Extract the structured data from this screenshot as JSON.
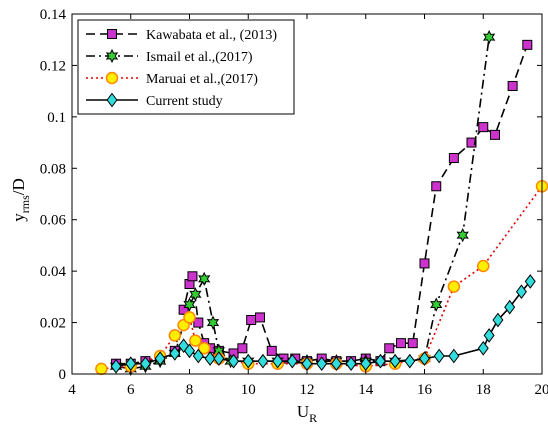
{
  "chart_data": {
    "type": "line",
    "xlabel": "U",
    "xlabel_sub": "R",
    "ylabel": "y",
    "ylabel_sub": "rms",
    "ylabel_suffix": "/D",
    "xlim": [
      4,
      20
    ],
    "ylim": [
      0,
      0.14
    ],
    "x_ticks": [
      4,
      6,
      8,
      10,
      12,
      14,
      16,
      18,
      20
    ],
    "y_ticks": [
      0,
      0.02,
      0.04,
      0.06,
      0.08,
      0.1,
      0.12,
      0.14
    ],
    "x_tick_labels": [
      "4",
      "6",
      "8",
      "10",
      "12",
      "14",
      "16",
      "18",
      "20"
    ],
    "y_tick_labels": [
      "0",
      "0.02",
      "0.04",
      "0.06",
      "0.08",
      "0.1",
      "0.12",
      "0.14"
    ],
    "grid": false,
    "legend_position": "top-left",
    "series": [
      {
        "name": "Kawabata et al., (2013)",
        "line_style": "dashed",
        "line_color": "#000000",
        "marker": "square",
        "marker_color": "#cc33cc",
        "x": [
          5.5,
          6.0,
          6.5,
          7.0,
          7.5,
          7.8,
          8.0,
          8.1,
          8.3,
          8.5,
          8.7,
          9.0,
          9.5,
          9.8,
          10.1,
          10.4,
          10.8,
          11.2,
          11.6,
          12.0,
          12.5,
          13.0,
          13.5,
          14.0,
          14.5,
          14.8,
          15.2,
          15.6,
          16.0,
          16.4,
          17.0,
          17.6,
          18.0,
          18.4,
          19.0,
          19.5
        ],
        "y": [
          0.004,
          0.004,
          0.005,
          0.006,
          0.009,
          0.025,
          0.035,
          0.038,
          0.02,
          0.012,
          0.01,
          0.009,
          0.008,
          0.01,
          0.021,
          0.022,
          0.009,
          0.006,
          0.006,
          0.005,
          0.006,
          0.005,
          0.005,
          0.006,
          0.005,
          0.01,
          0.012,
          0.012,
          0.043,
          0.073,
          0.084,
          0.09,
          0.096,
          0.093,
          0.112,
          0.128
        ]
      },
      {
        "name": "Ismail et al.,(2017)",
        "line_style": "dashdot",
        "line_color": "#000000",
        "marker": "hexagram",
        "marker_color": "#33cc33",
        "x": [
          5.5,
          6.0,
          6.5,
          7.0,
          7.5,
          8.0,
          8.2,
          8.5,
          8.8,
          9.0,
          9.4,
          10.0,
          11.0,
          12.0,
          13.0,
          14.0,
          15.0,
          16.0,
          16.4,
          17.3,
          18.2
        ],
        "y": [
          0.003,
          0.002,
          0.003,
          0.005,
          0.008,
          0.027,
          0.031,
          0.037,
          0.02,
          0.009,
          0.005,
          0.005,
          0.005,
          0.005,
          0.005,
          0.005,
          0.005,
          0.006,
          0.027,
          0.054,
          0.131
        ]
      },
      {
        "name": "Maruai et al.,(2017)",
        "line_style": "dotted",
        "line_color": "#e00000",
        "marker": "circle",
        "marker_color": "#ffee00",
        "marker_edge": "#ff8800",
        "x": [
          5.0,
          6.0,
          7.0,
          7.5,
          7.8,
          8.0,
          8.2,
          8.5,
          9.0,
          10.0,
          11.0,
          12.0,
          13.0,
          14.0,
          15.0,
          16.0,
          17.0,
          18.0,
          20.0
        ],
        "y": [
          0.002,
          0.003,
          0.007,
          0.015,
          0.019,
          0.022,
          0.013,
          0.01,
          0.006,
          0.004,
          0.004,
          0.004,
          0.004,
          0.003,
          0.004,
          0.006,
          0.034,
          0.042,
          0.073
        ]
      },
      {
        "name": "Current study",
        "line_style": "solid",
        "line_color": "#000000",
        "marker": "diamond",
        "marker_color": "#33dddd",
        "x": [
          5.5,
          6.0,
          6.5,
          7.0,
          7.5,
          7.8,
          8.0,
          8.3,
          8.7,
          9.0,
          9.5,
          10.0,
          10.5,
          11.0,
          11.5,
          12.0,
          12.5,
          13.0,
          13.5,
          14.0,
          14.5,
          15.0,
          15.5,
          16.0,
          16.5,
          17.0,
          18.0,
          18.2,
          18.5,
          18.9,
          19.3,
          19.6
        ],
        "y": [
          0.003,
          0.004,
          0.004,
          0.006,
          0.008,
          0.011,
          0.009,
          0.007,
          0.006,
          0.006,
          0.005,
          0.005,
          0.005,
          0.005,
          0.005,
          0.004,
          0.004,
          0.004,
          0.004,
          0.004,
          0.005,
          0.005,
          0.005,
          0.006,
          0.007,
          0.007,
          0.01,
          0.015,
          0.021,
          0.026,
          0.032,
          0.036
        ]
      }
    ]
  }
}
